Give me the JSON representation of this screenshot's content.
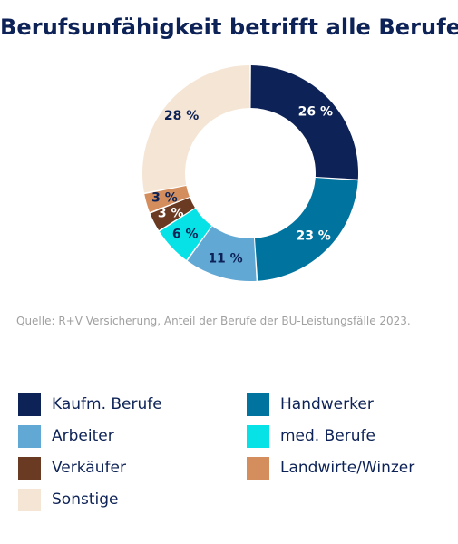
{
  "header": {
    "title": "Berufsunfähigkeit betrifft alle Berufe"
  },
  "source_note": "Quelle: R+V Versicherung, Anteil der Berufe der BU-Leistungsfälle 2023.",
  "chart_data": {
    "type": "pie",
    "style": "donut",
    "title": "Berufsunfähigkeit betrifft alle Berufe",
    "unit": "%",
    "slices": [
      {
        "name": "Kaufm. Berufe",
        "value": 26,
        "label": "26 %",
        "color": "#0d2256",
        "label_color": "#ffffff"
      },
      {
        "name": "Handwerker",
        "value": 23,
        "label": "23 %",
        "color": "#00739e",
        "label_color": "#ffffff"
      },
      {
        "name": "Arbeiter",
        "value": 11,
        "label": "11 %",
        "color": "#62a8d5",
        "label_color": "#0d2256"
      },
      {
        "name": "med. Berufe",
        "value": 6,
        "label": "6 %",
        "color": "#06e2e6",
        "label_color": "#0d2256"
      },
      {
        "name": "Verkäufer",
        "value": 3,
        "label": "3 %",
        "color": "#6b3a22",
        "label_color": "#ffffff"
      },
      {
        "name": "Landwirte/Winzer",
        "value": 3,
        "label": "3 %",
        "color": "#d48e5e",
        "label_color": "#0d2256"
      },
      {
        "name": "Sonstige",
        "value": 28,
        "label": "28 %",
        "color": "#f5e5d4",
        "label_color": "#0d2256"
      }
    ],
    "legend_placement": "bottom"
  },
  "legend": [
    {
      "label": "Kaufm. Berufe",
      "color": "#0d2256"
    },
    {
      "label": "Handwerker",
      "color": "#00739e"
    },
    {
      "label": "Arbeiter",
      "color": "#62a8d5"
    },
    {
      "label": "med. Berufe",
      "color": "#06e2e6"
    },
    {
      "label": "Verkäufer",
      "color": "#6b3a22"
    },
    {
      "label": "Landwirte/Winzer",
      "color": "#d48e5e"
    },
    {
      "label": "Sonstige",
      "color": "#f5e5d4"
    }
  ]
}
